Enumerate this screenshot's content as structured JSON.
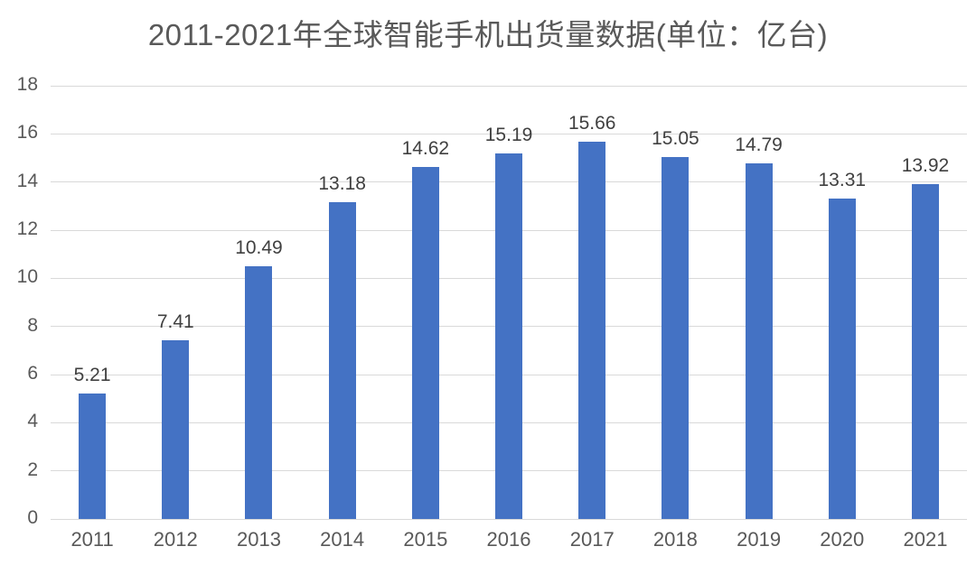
{
  "chart_data": {
    "type": "bar",
    "title": "2011-2021年全球智能手机出货量数据(单位：亿台)",
    "categories": [
      "2011",
      "2012",
      "2013",
      "2014",
      "2015",
      "2016",
      "2017",
      "2018",
      "2019",
      "2020",
      "2021"
    ],
    "values": [
      5.21,
      7.41,
      10.49,
      13.18,
      14.62,
      15.19,
      15.66,
      15.05,
      14.79,
      13.31,
      13.92
    ],
    "data_labels": [
      "5.21",
      "7.41",
      "10.49",
      "13.18",
      "14.62",
      "15.19",
      "15.66",
      "15.05",
      "14.79",
      "13.31",
      "13.92"
    ],
    "xlabel": "",
    "ylabel": "",
    "ylim": [
      0,
      18
    ],
    "ytick_step": 2,
    "ytick_labels": [
      "0",
      "2",
      "4",
      "6",
      "8",
      "10",
      "12",
      "14",
      "16",
      "18"
    ],
    "grid": true,
    "legend_position": "none",
    "colors": {
      "bar": "#4472c4",
      "gridline": "#d9d9d9",
      "title_text": "#595959",
      "axis_text": "#595959",
      "data_label_text": "#404040",
      "background": "#ffffff"
    }
  }
}
